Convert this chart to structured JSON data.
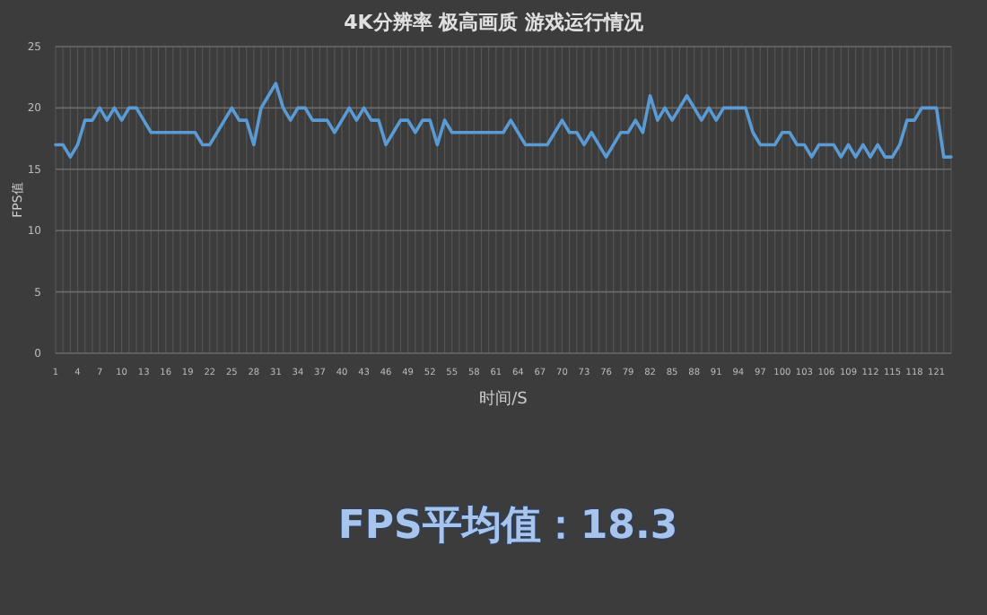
{
  "chart_data": {
    "type": "line",
    "title": "4K分辨率 极高画质 游戏运行情况",
    "xlabel": "时间/S",
    "ylabel": "FPS值",
    "categories": [
      "1",
      null,
      null,
      "4",
      null,
      null,
      "7",
      null,
      null,
      "10",
      null,
      null,
      "13",
      null,
      null,
      "16",
      null,
      null,
      "19",
      null,
      null,
      "22",
      null,
      null,
      "25",
      null,
      null,
      "28",
      null,
      null,
      "31",
      null,
      null,
      "34",
      null,
      null,
      "37",
      null,
      null,
      "40",
      null,
      null,
      "43",
      null,
      null,
      "46",
      null,
      null,
      "49",
      null,
      null,
      "52",
      null,
      null,
      "55",
      null,
      null,
      "58",
      null,
      null,
      "61",
      null,
      null,
      "64",
      null,
      null,
      "67",
      null,
      null,
      "70",
      null,
      null,
      "73",
      null,
      null,
      "76",
      null,
      null,
      "79",
      null,
      null,
      "82",
      null,
      null,
      "85",
      null,
      null,
      "88",
      null,
      null,
      "91",
      null,
      null,
      "94",
      null,
      null,
      "97",
      null,
      null,
      "100",
      null,
      null,
      "103",
      null,
      null,
      "106",
      null,
      null,
      "109",
      null,
      null,
      "112",
      null,
      null,
      "115",
      null,
      null,
      "118",
      null,
      null,
      "121",
      null,
      null
    ],
    "series": [
      {
        "color": "#5b9bd5",
        "values": [
          17,
          17,
          16,
          17,
          19,
          19,
          20,
          19,
          20,
          19,
          20,
          20,
          19,
          18,
          18,
          18,
          18,
          18,
          18,
          18,
          17,
          17,
          18,
          19,
          20,
          19,
          19,
          17,
          20,
          21,
          22,
          20,
          19,
          20,
          20,
          19,
          19,
          19,
          18,
          19,
          20,
          19,
          20,
          19,
          19,
          17,
          18,
          19,
          19,
          18,
          19,
          19,
          17,
          19,
          18,
          18,
          18,
          18,
          18,
          18,
          18,
          18,
          19,
          18,
          17,
          17,
          17,
          17,
          18,
          19,
          18,
          18,
          17,
          18,
          17,
          16,
          17,
          18,
          18,
          19,
          18,
          21,
          19,
          20,
          19,
          20,
          21,
          20,
          19,
          20,
          19,
          20,
          20,
          20,
          20,
          18,
          17,
          17,
          17,
          18,
          18,
          17,
          17,
          16,
          17,
          17,
          17,
          16,
          17,
          16,
          17,
          16,
          17,
          16,
          16,
          17,
          19,
          19,
          20,
          20,
          20,
          16,
          16
        ]
      }
    ],
    "ylim": [
      0,
      25
    ],
    "yticks": [
      0,
      5,
      10,
      15,
      20,
      25
    ],
    "grid": true,
    "annotations": [
      "FPS平均值：18.3"
    ]
  }
}
